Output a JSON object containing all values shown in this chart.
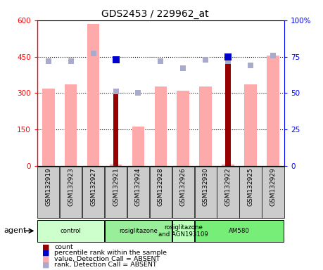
{
  "title": "GDS2453 / 229962_at",
  "samples": [
    "GSM132919",
    "GSM132923",
    "GSM132927",
    "GSM132921",
    "GSM132924",
    "GSM132928",
    "GSM132926",
    "GSM132930",
    "GSM132922",
    "GSM132925",
    "GSM132929"
  ],
  "value_absent": [
    320,
    335,
    585,
    5,
    163,
    328,
    310,
    328,
    5,
    335,
    455
  ],
  "rank_absent_pct": [
    72,
    72,
    77,
    51,
    50,
    72,
    67,
    73,
    72,
    69,
    76
  ],
  "count_present": [
    0,
    0,
    0,
    320,
    0,
    0,
    0,
    0,
    447,
    0,
    0
  ],
  "percentile_present": [
    0,
    0,
    0,
    73,
    0,
    0,
    0,
    0,
    75,
    0,
    0
  ],
  "ylim_left": [
    0,
    600
  ],
  "ylim_right": [
    0,
    100
  ],
  "yticks_left": [
    0,
    150,
    300,
    450,
    600
  ],
  "yticks_right": [
    0,
    25,
    50,
    75,
    100
  ],
  "groups": [
    {
      "label": "control",
      "start": 0,
      "end": 3,
      "color": "#ccffcc"
    },
    {
      "label": "rosiglitazone",
      "start": 3,
      "end": 6,
      "color": "#99ee99"
    },
    {
      "label": "rosiglitazone\nand AGN193109",
      "start": 6,
      "end": 7,
      "color": "#bbffbb"
    },
    {
      "label": "AM580",
      "start": 7,
      "end": 11,
      "color": "#77ee77"
    }
  ],
  "color_value_absent": "#ffaaaa",
  "color_rank_absent": "#aaaacc",
  "color_count_present": "#990000",
  "color_percentile_present": "#0000cc",
  "bar_width": 0.55
}
